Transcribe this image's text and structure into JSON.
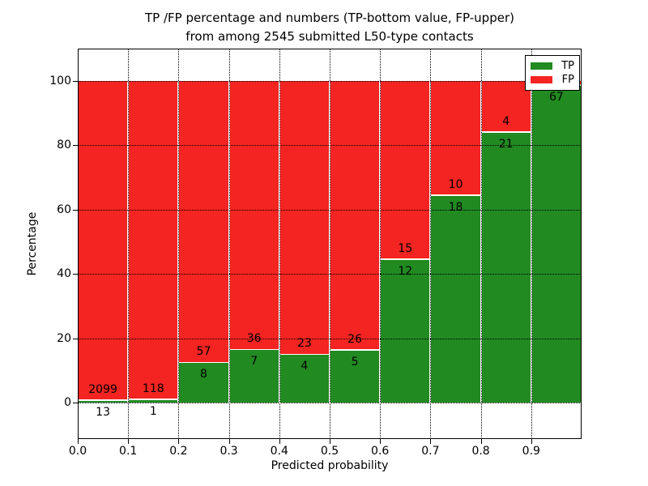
{
  "title": {
    "line1": "TP /FP percentage and numbers (TP-bottom value, FP-upper)",
    "line2": "from among 2545 submitted L50-type contacts"
  },
  "axes": {
    "xlabel": "Predicted probability",
    "ylabel": "Percentage",
    "x_tick_labels": [
      "0.0",
      "0.1",
      "0.2",
      "0.3",
      "0.4",
      "0.5",
      "0.6",
      "0.7",
      "0.8",
      "0.9"
    ],
    "y_tick_labels": [
      "0",
      "20",
      "40",
      "60",
      "80",
      "100"
    ]
  },
  "legend": {
    "items": [
      {
        "label": "TP",
        "color_key": "tp"
      },
      {
        "label": "FP",
        "color_key": "fp"
      }
    ]
  },
  "colors": {
    "tp": "#218a21",
    "fp": "#f32421",
    "grid": "#000000",
    "background": "#ffffff"
  },
  "chart_data": {
    "type": "bar",
    "stacked": true,
    "title": "TP /FP percentage and numbers (TP-bottom value, FP-upper) from among 2545 submitted L50-type contacts",
    "xlabel": "Predicted probability",
    "ylabel": "Percentage",
    "total_submitted_contacts": 2545,
    "contact_type": "L50",
    "bin_edges": [
      0.0,
      0.1,
      0.2,
      0.3,
      0.4,
      0.5,
      0.6,
      0.7,
      0.8,
      0.9,
      1.0
    ],
    "xlim": [
      0.0,
      1.0
    ],
    "ylim": [
      -11.3,
      110.2
    ],
    "y_ticks": [
      0,
      20,
      40,
      60,
      80,
      100
    ],
    "grid": true,
    "legend_position": "upper right",
    "series": [
      {
        "name": "TP",
        "position": "bottom",
        "counts": [
          13,
          1,
          8,
          7,
          4,
          5,
          12,
          18,
          21,
          67
        ],
        "pct": [
          0.62,
          0.84,
          12.31,
          16.28,
          14.81,
          16.13,
          44.44,
          64.29,
          84.0,
          98.5
        ],
        "labels": [
          "13",
          "1",
          "8",
          "7",
          "4",
          "5",
          "12",
          "18",
          "21",
          "67"
        ]
      },
      {
        "name": "FP",
        "position": "top",
        "stack_top_pct": 100,
        "counts": [
          2099,
          118,
          57,
          36,
          23,
          26,
          15,
          10,
          4,
          null
        ],
        "labels": [
          "2099",
          "118",
          "57",
          "36",
          "23",
          "26",
          "15",
          "10",
          "4",
          null
        ]
      }
    ]
  }
}
